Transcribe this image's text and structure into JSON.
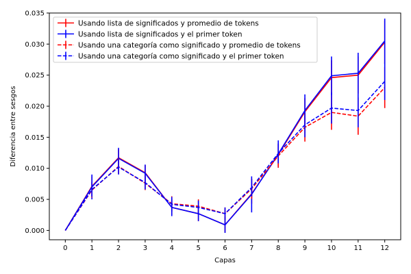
{
  "chart_data": {
    "type": "line",
    "xlabel": "Capas",
    "ylabel": "Diferencia entre sesgos",
    "x": [
      0,
      1,
      2,
      3,
      4,
      5,
      6,
      7,
      8,
      9,
      10,
      11,
      12
    ],
    "xlim": [
      -0.6,
      12.6
    ],
    "ylim": [
      -0.0015,
      0.035
    ],
    "yticks": [
      0.0,
      0.005,
      0.01,
      0.015,
      0.02,
      0.025,
      0.03,
      0.035
    ],
    "ytick_labels": [
      "0.000",
      "0.005",
      "0.010",
      "0.015",
      "0.020",
      "0.025",
      "0.030",
      "0.035"
    ],
    "xtick_labels": [
      "0",
      "1",
      "2",
      "3",
      "4",
      "5",
      "6",
      "7",
      "8",
      "9",
      "10",
      "11",
      "12"
    ],
    "legend_position": "top-left",
    "series": [
      {
        "name": "Usando lista de significados y promedio de tokens",
        "color": "#ff0000",
        "dash": "solid",
        "values": [
          0.0,
          0.0071,
          0.0117,
          0.0093,
          0.0037,
          0.0027,
          0.0009,
          0.0059,
          0.0122,
          0.0191,
          0.0246,
          0.025,
          0.0303
        ],
        "errors": [
          0.0,
          0.0016,
          0.0014,
          0.0012,
          0.0012,
          0.0012,
          0.0012,
          0.0016,
          0.0018,
          0.0022,
          0.0028,
          0.003,
          0.0035
        ]
      },
      {
        "name": "Usando lista de significados y el primer token",
        "color": "#0000ff",
        "dash": "solid",
        "values": [
          0.0,
          0.007,
          0.0116,
          0.0092,
          0.0037,
          0.0027,
          0.0009,
          0.0058,
          0.0123,
          0.0193,
          0.0249,
          0.0253,
          0.0305
        ],
        "errors": [
          0.0,
          0.002,
          0.0017,
          0.0014,
          0.0014,
          0.0012,
          0.0013,
          0.0029,
          0.0022,
          0.0026,
          0.0031,
          0.0033,
          0.0036
        ]
      },
      {
        "name": "Usando una categoría como significado y promedio de tokens",
        "color": "#ff0000",
        "dash": "dashed",
        "values": [
          0.0,
          0.0065,
          0.0103,
          0.0076,
          0.0043,
          0.0039,
          0.0027,
          0.0067,
          0.012,
          0.0166,
          0.019,
          0.0184,
          0.023
        ],
        "errors": [
          0.0,
          0.0012,
          0.0012,
          0.0011,
          0.0012,
          0.0011,
          0.001,
          0.0016,
          0.0019,
          0.0023,
          0.0028,
          0.003,
          0.0033
        ]
      },
      {
        "name": "Usando una categoría como significado y el primer token",
        "color": "#0000ff",
        "dash": "dashed",
        "values": [
          0.0,
          0.0066,
          0.0102,
          0.0077,
          0.0042,
          0.0037,
          0.0027,
          0.0069,
          0.0124,
          0.017,
          0.0197,
          0.0193,
          0.024
        ],
        "errors": [
          0.0,
          0.0012,
          0.0012,
          0.0011,
          0.0012,
          0.0011,
          0.001,
          0.0014,
          0.0016,
          0.002,
          0.0025,
          0.0027,
          0.003
        ]
      }
    ]
  }
}
